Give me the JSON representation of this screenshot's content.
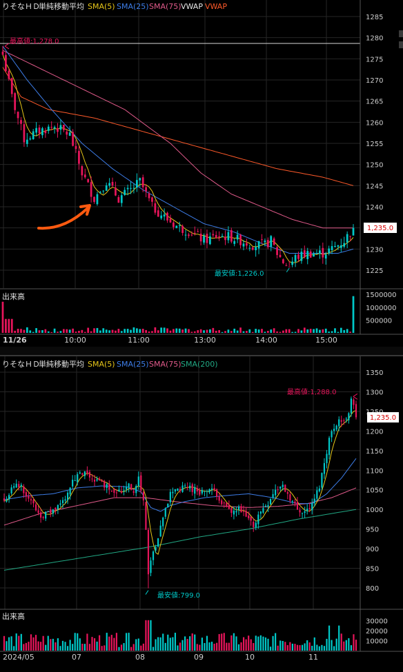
{
  "colors": {
    "background": "#000000",
    "grid": "#262626",
    "axis_text": "#cfcfcf",
    "up": "#00c9c9",
    "down": "#e8155b",
    "sma5": "#e6c619",
    "sma25": "#3d7de8",
    "sma75": "#e05a8a",
    "sma200": "#21a884",
    "vwap1": "#e8e8e8",
    "vwap2": "#ff5a2a",
    "high_marker": "#e8155b",
    "low_marker": "#00c9c9",
    "arrow": "#ff5a10",
    "price_tag_bg": "#ffffff",
    "price_tag_text": "#d60000",
    "high_line": "#d8d8d8"
  },
  "chart_data": [
    {
      "type": "candlestick",
      "title": "りそなＨＤ",
      "legend": [
        {
          "label": "単純移動平均",
          "color": "#e0e0e0"
        },
        {
          "label": "SMA(5)",
          "color": "#e6c619"
        },
        {
          "label": "SMA(25)",
          "color": "#3d7de8"
        },
        {
          "label": "SMA(75)",
          "color": "#e05a8a"
        },
        {
          "label": "VWAP",
          "color": "#e8e8e8"
        },
        {
          "label": "VWAP",
          "color": "#ff5a2a"
        }
      ],
      "ylim": [
        1220,
        1287
      ],
      "y_ticks": [
        1285,
        1280,
        1275,
        1270,
        1265,
        1260,
        1255,
        1250,
        1245,
        1240,
        1235,
        1230,
        1225
      ],
      "x_ticks": [
        {
          "label": "11/26",
          "index": 0
        },
        {
          "label": "10:00",
          "index": 22
        },
        {
          "label": "11:00",
          "index": 44
        },
        {
          "label": "13:00",
          "index": 66
        },
        {
          "label": "14:00",
          "index": 88
        },
        {
          "label": "15:00",
          "index": 110
        }
      ],
      "current_price": "1,235.0",
      "current_value": 1235,
      "high_annotation": {
        "label": "最高値:1,278.0",
        "value": 1278,
        "index": 0
      },
      "low_annotation": {
        "label": "最安値:1,226.0",
        "value": 1226,
        "index": 94
      },
      "volume_label": "出来高",
      "volume_ticks": [
        {
          "label": "1500000",
          "value": 1500000
        },
        {
          "label": "1000000",
          "value": 1000000
        },
        {
          "label": "500000",
          "value": 500000
        }
      ],
      "volume_max": 1560000,
      "anchors_close": [
        [
          0,
          1276
        ],
        [
          3,
          1266
        ],
        [
          7,
          1256
        ],
        [
          12,
          1258
        ],
        [
          17,
          1259
        ],
        [
          22,
          1257
        ],
        [
          26,
          1248
        ],
        [
          30,
          1242
        ],
        [
          34,
          1246
        ],
        [
          38,
          1242
        ],
        [
          42,
          1244
        ],
        [
          45,
          1246
        ],
        [
          49,
          1240
        ],
        [
          54,
          1237
        ],
        [
          58,
          1235
        ],
        [
          62,
          1234
        ],
        [
          66,
          1232
        ],
        [
          70,
          1233
        ],
        [
          74,
          1233
        ],
        [
          78,
          1232
        ],
        [
          82,
          1231
        ],
        [
          86,
          1231
        ],
        [
          88,
          1232
        ],
        [
          90,
          1229
        ],
        [
          92,
          1227
        ],
        [
          94,
          1226
        ],
        [
          96,
          1228
        ],
        [
          100,
          1229
        ],
        [
          105,
          1229
        ],
        [
          108,
          1230
        ],
        [
          110,
          1231
        ],
        [
          112,
          1232
        ],
        [
          115,
          1235
        ]
      ],
      "anchors_sma25": [
        [
          0,
          1278
        ],
        [
          8,
          1270
        ],
        [
          16,
          1263
        ],
        [
          26,
          1255
        ],
        [
          36,
          1249
        ],
        [
          46,
          1244
        ],
        [
          56,
          1240
        ],
        [
          66,
          1236
        ],
        [
          76,
          1234
        ],
        [
          86,
          1231
        ],
        [
          94,
          1229
        ],
        [
          104,
          1229
        ],
        [
          110,
          1229
        ],
        [
          115,
          1230
        ]
      ],
      "anchors_vwap1": [
        [
          0,
          1277
        ],
        [
          20,
          1270
        ],
        [
          40,
          1263
        ],
        [
          55,
          1255
        ],
        [
          65,
          1248
        ],
        [
          75,
          1243
        ],
        [
          85,
          1240
        ],
        [
          95,
          1237
        ],
        [
          105,
          1235
        ],
        [
          115,
          1235
        ]
      ],
      "anchors_vwap2": [
        [
          0,
          1273
        ],
        [
          6,
          1266
        ],
        [
          15,
          1263
        ],
        [
          30,
          1261
        ],
        [
          45,
          1258
        ],
        [
          60,
          1255
        ],
        [
          75,
          1252
        ],
        [
          90,
          1249
        ],
        [
          105,
          1247
        ],
        [
          115,
          1245
        ]
      ]
    },
    {
      "type": "candlestick",
      "title": "りそなＨＤ",
      "legend": [
        {
          "label": "単純移動平均",
          "color": "#e0e0e0"
        },
        {
          "label": "SMA(5)",
          "color": "#e6c619"
        },
        {
          "label": "SMA(25)",
          "color": "#3d7de8"
        },
        {
          "label": "SMA(75)",
          "color": "#e05a8a"
        },
        {
          "label": "SMA(200)",
          "color": "#21a884"
        }
      ],
      "ylim": [
        770,
        1370
      ],
      "y_ticks": [
        1350,
        1300,
        1250,
        1200,
        1150,
        1100,
        1050,
        1000,
        950,
        900,
        850,
        800
      ],
      "x_ticks": [
        {
          "label": "2024/05",
          "index": 0
        },
        {
          "label": "07",
          "index": 37
        },
        {
          "label": "08",
          "index": 58
        },
        {
          "label": "09",
          "index": 82
        },
        {
          "label": "10",
          "index": 103
        },
        {
          "label": "11",
          "index": 124
        }
      ],
      "current_price": "1,235.0",
      "current_value": 1235,
      "high_annotation": {
        "label": "最高値:1,288.0",
        "value": 1288,
        "index": 142
      },
      "low_annotation": {
        "label": "最安値:799.0",
        "value": 799,
        "index": 59
      },
      "volume_label": "出来高",
      "volume_ticks": [
        {
          "label": "30000",
          "value": 30000
        },
        {
          "label": "20000",
          "value": 20000
        },
        {
          "label": "10000",
          "value": 10000
        }
      ],
      "volume_max": 36000,
      "anchors_close": [
        [
          0,
          1020
        ],
        [
          4,
          1060
        ],
        [
          7,
          1060
        ],
        [
          9,
          1040
        ],
        [
          12,
          1010
        ],
        [
          15,
          985
        ],
        [
          18,
          990
        ],
        [
          21,
          1000
        ],
        [
          24,
          1020
        ],
        [
          27,
          1060
        ],
        [
          30,
          1085
        ],
        [
          33,
          1090
        ],
        [
          36,
          1080
        ],
        [
          39,
          1070
        ],
        [
          42,
          1060
        ],
        [
          45,
          1050
        ],
        [
          48,
          1045
        ],
        [
          51,
          1070
        ],
        [
          53,
          1040
        ],
        [
          55,
          1080
        ],
        [
          57,
          1020
        ],
        [
          58,
          950
        ],
        [
          59,
          840
        ],
        [
          60,
          870
        ],
        [
          62,
          900
        ],
        [
          64,
          950
        ],
        [
          66,
          1000
        ],
        [
          68,
          1040
        ],
        [
          70,
          1055
        ],
        [
          72,
          1050
        ],
        [
          75,
          1060
        ],
        [
          78,
          1050
        ],
        [
          81,
          1045
        ],
        [
          84,
          1050
        ],
        [
          87,
          1040
        ],
        [
          90,
          1010
        ],
        [
          93,
          990
        ],
        [
          96,
          1000
        ],
        [
          99,
          980
        ],
        [
          102,
          960
        ],
        [
          105,
          995
        ],
        [
          108,
          1020
        ],
        [
          111,
          1050
        ],
        [
          114,
          1060
        ],
        [
          117,
          1030
        ],
        [
          120,
          1000
        ],
        [
          123,
          995
        ],
        [
          126,
          1010
        ],
        [
          129,
          1060
        ],
        [
          131,
          1120
        ],
        [
          133,
          1180
        ],
        [
          135,
          1210
        ],
        [
          137,
          1230
        ],
        [
          139,
          1220
        ],
        [
          141,
          1250
        ],
        [
          142,
          1285
        ],
        [
          143,
          1260
        ],
        [
          144,
          1235
        ]
      ],
      "anchors_sma25": [
        [
          0,
          1025
        ],
        [
          10,
          1035
        ],
        [
          20,
          1040
        ],
        [
          30,
          1055
        ],
        [
          40,
          1060
        ],
        [
          50,
          1058
        ],
        [
          56,
          1045
        ],
        [
          60,
          1005
        ],
        [
          64,
          995
        ],
        [
          68,
          1010
        ],
        [
          74,
          1020
        ],
        [
          82,
          1030
        ],
        [
          90,
          1035
        ],
        [
          100,
          1040
        ],
        [
          110,
          1030
        ],
        [
          120,
          1015
        ],
        [
          126,
          1015
        ],
        [
          132,
          1040
        ],
        [
          138,
          1080
        ],
        [
          144,
          1130
        ]
      ],
      "anchors_sma75": [
        [
          0,
          960
        ],
        [
          15,
          990
        ],
        [
          30,
          1010
        ],
        [
          45,
          1030
        ],
        [
          58,
          1030
        ],
        [
          70,
          1020
        ],
        [
          85,
          1010
        ],
        [
          100,
          1005
        ],
        [
          112,
          1008
        ],
        [
          124,
          1015
        ],
        [
          134,
          1030
        ],
        [
          144,
          1055
        ]
      ],
      "anchors_sma200": [
        [
          0,
          845
        ],
        [
          20,
          865
        ],
        [
          40,
          885
        ],
        [
          60,
          905
        ],
        [
          80,
          930
        ],
        [
          100,
          950
        ],
        [
          120,
          975
        ],
        [
          144,
          1000
        ]
      ]
    }
  ]
}
